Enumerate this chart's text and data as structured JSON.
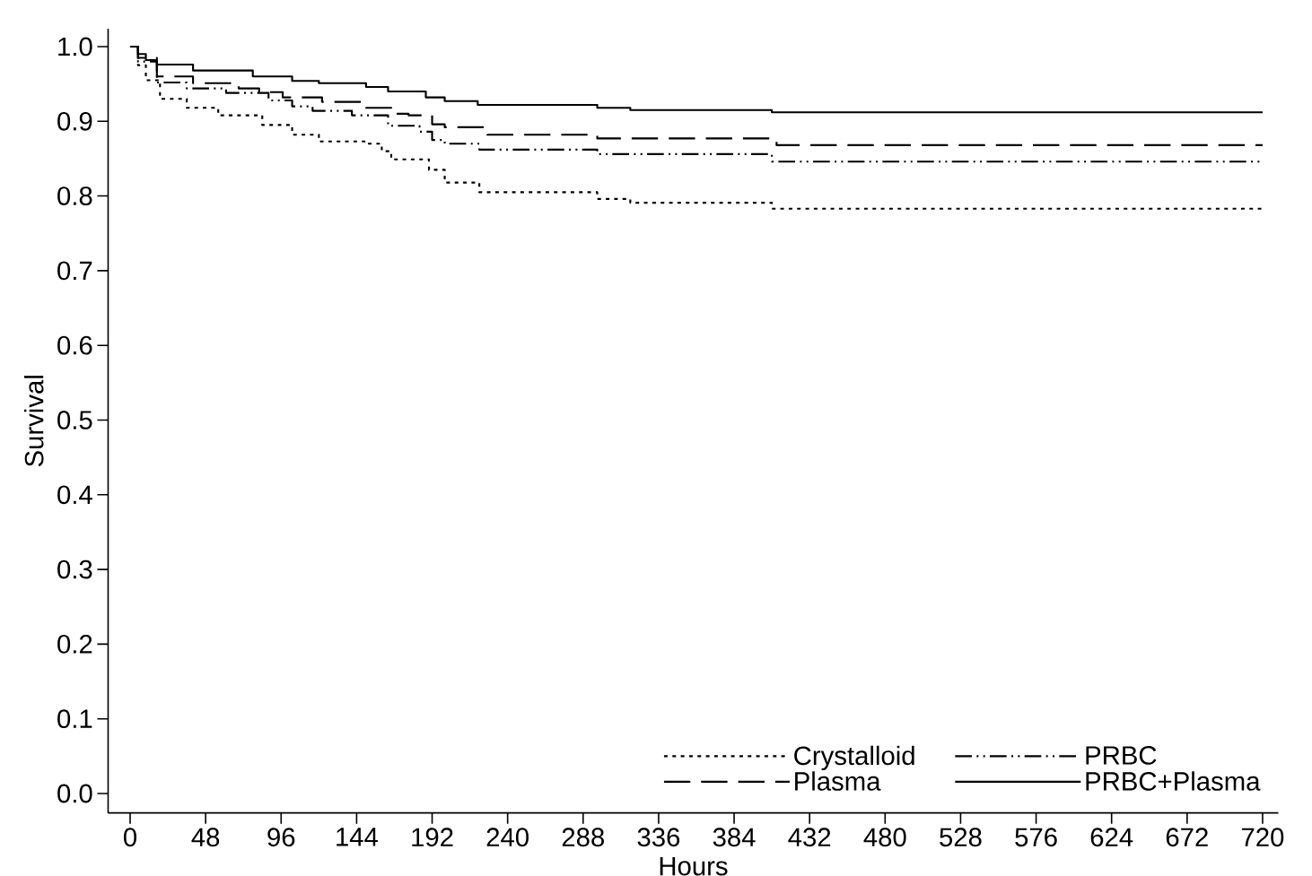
{
  "chart_data": {
    "type": "step",
    "xlabel": "Hours",
    "ylabel": "Survival",
    "xlim": [
      -14,
      730
    ],
    "ylim": [
      -0.026,
      1.024
    ],
    "xticks": [
      0,
      48,
      96,
      144,
      192,
      240,
      288,
      336,
      384,
      432,
      480,
      528,
      576,
      624,
      672,
      720
    ],
    "yticks": [
      {
        "value": 0,
        "label": "0.0"
      },
      0.1,
      0.2,
      0.3,
      0.4,
      0.5,
      0.6,
      0.7,
      0.8,
      0.9,
      {
        "value": 1,
        "label": "1.0"
      }
    ],
    "grid": false,
    "legend": "bottom right",
    "series": [
      {
        "name": "Crystalloid",
        "color": "#000000",
        "line_style": "dotted",
        "x": [
          0,
          5,
          10,
          19,
          36,
          56,
          84,
          103,
          120,
          149,
          160,
          166,
          190,
          200,
          222,
          297,
          318,
          408,
          720
        ],
        "values": [
          1.0,
          0.975,
          0.955,
          0.93,
          0.918,
          0.908,
          0.895,
          0.882,
          0.873,
          0.87,
          0.86,
          0.849,
          0.835,
          0.818,
          0.805,
          0.796,
          0.791,
          0.783,
          0.783
        ]
      },
      {
        "name": "PRBC",
        "color": "#000000",
        "line_style": "dashdotdotted",
        "x": [
          0,
          5,
          17,
          36,
          61,
          88,
          103,
          116,
          141,
          164,
          184,
          192,
          200,
          222,
          297,
          408,
          720
        ],
        "values": [
          1.0,
          0.98,
          0.952,
          0.944,
          0.938,
          0.928,
          0.92,
          0.914,
          0.908,
          0.894,
          0.886,
          0.875,
          0.87,
          0.862,
          0.856,
          0.846,
          0.846
        ]
      },
      {
        "name": "Plasma",
        "color": "#000000",
        "line_style": "dashed",
        "x": [
          0,
          5,
          17,
          40,
          69,
          82,
          97,
          122,
          150,
          166,
          177,
          192,
          200,
          227,
          297,
          411,
          720
        ],
        "values": [
          1.0,
          0.985,
          0.96,
          0.951,
          0.944,
          0.939,
          0.932,
          0.926,
          0.918,
          0.91,
          0.908,
          0.896,
          0.892,
          0.882,
          0.877,
          0.868,
          0.868
        ]
      },
      {
        "name": "PRBC+Plasma",
        "color": "#000000",
        "line_style": "solid",
        "x": [
          0,
          5,
          10,
          17,
          40,
          78,
          103,
          120,
          150,
          164,
          188,
          200,
          221,
          297,
          318,
          408,
          720
        ],
        "values": [
          1.0,
          0.99,
          0.982,
          0.976,
          0.968,
          0.96,
          0.954,
          0.951,
          0.946,
          0.94,
          0.932,
          0.927,
          0.922,
          0.918,
          0.915,
          0.912,
          0.912
        ]
      }
    ]
  }
}
